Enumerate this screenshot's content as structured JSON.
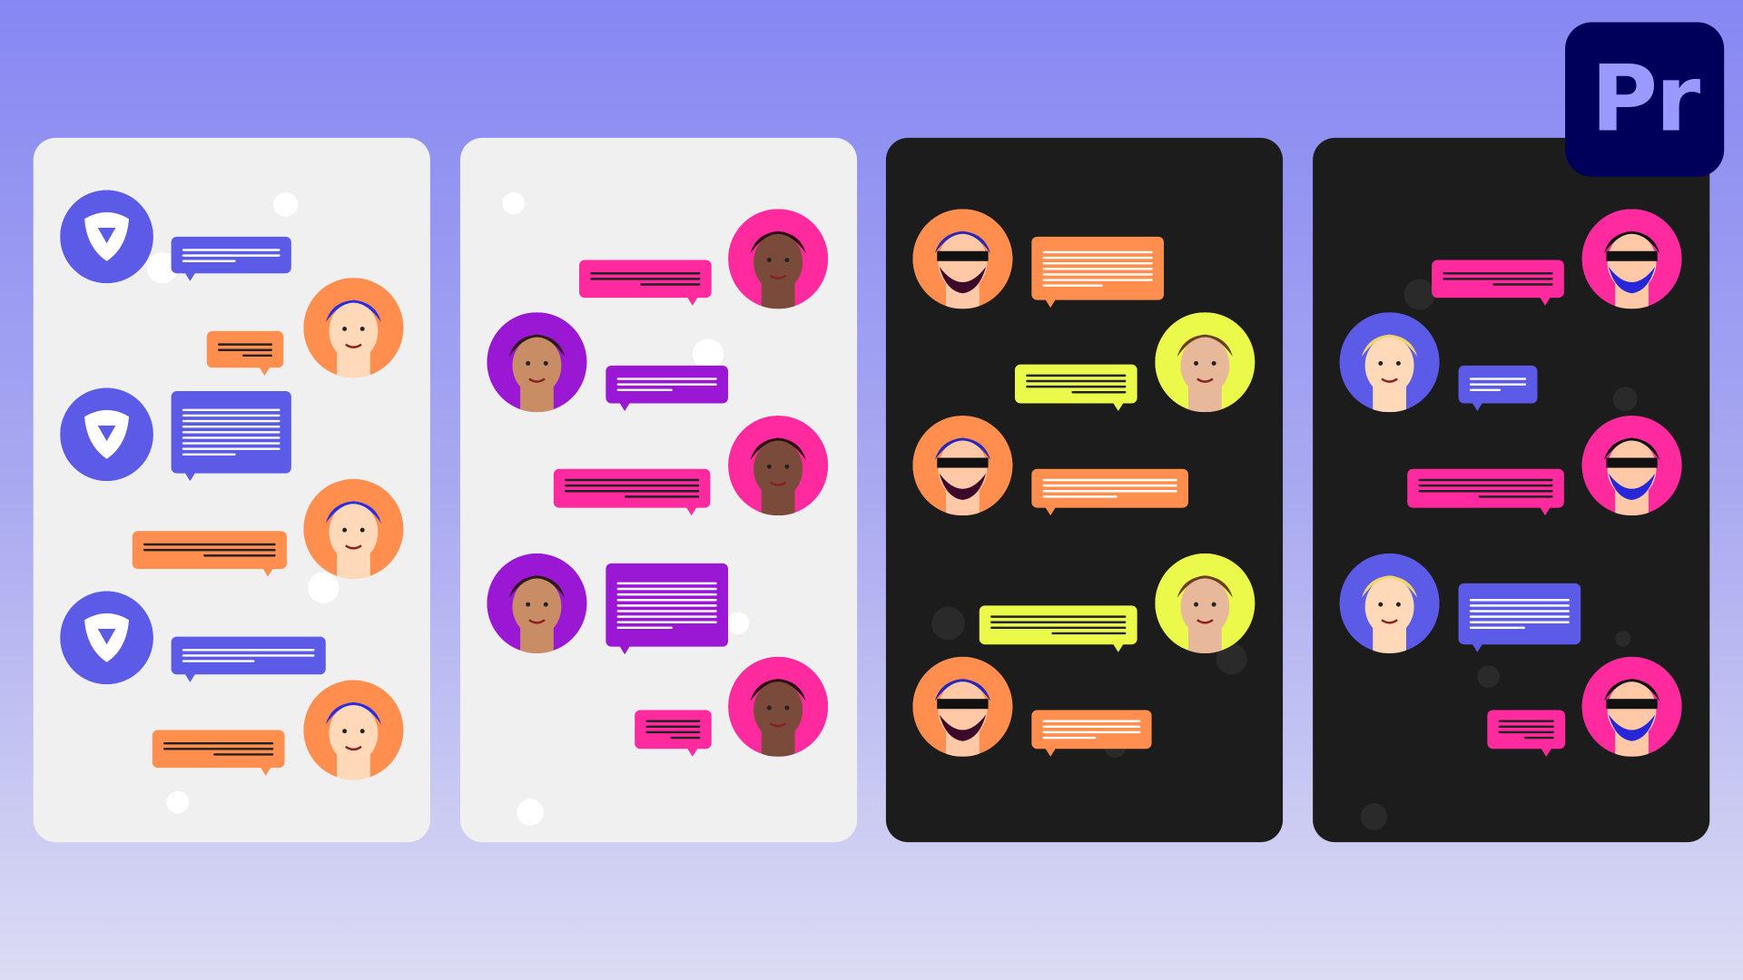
{
  "logo": {
    "text": "Pr",
    "background": "#00005b",
    "foreground": "#9999ff"
  },
  "colors": {
    "blue": "#5b5be8",
    "orange": "#ff8e4f",
    "pink": "#ff2a9e",
    "purple": "#9a17d4",
    "yellow": "#eaf94a",
    "panel_light": "#f0f0f0",
    "panel_dark": "#1c1c1c"
  },
  "panels": [
    {
      "theme": "light",
      "avatars": [
        "app-logo",
        "blue-haired-woman"
      ]
    },
    {
      "theme": "light",
      "avatars": [
        "curly-haired-woman",
        "smiling-man"
      ]
    },
    {
      "theme": "dark",
      "avatars": [
        "masked-bandit",
        "woman-photo"
      ]
    },
    {
      "theme": "dark",
      "avatars": [
        "masked-bandit",
        "blonde-woman"
      ]
    }
  ]
}
